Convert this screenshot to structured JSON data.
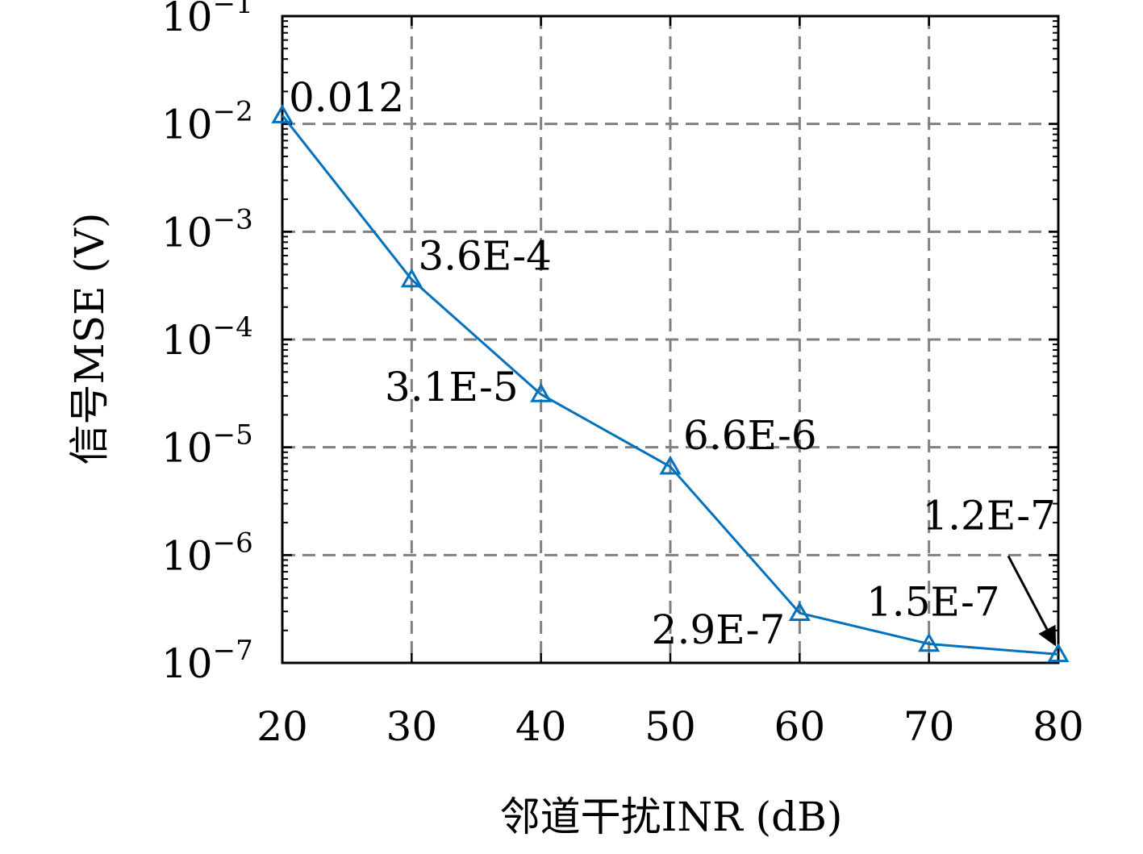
{
  "chart_data": {
    "type": "line",
    "title": "",
    "xlabel": "邻道干扰INR (dB)",
    "ylabel": "信号MSE (V)",
    "xlim": [
      20,
      80
    ],
    "ylim": [
      1e-07,
      0.1
    ],
    "yscale": "log",
    "grid": true,
    "marker": "triangle",
    "line_color": "#0072BD",
    "x_ticks": [
      20,
      30,
      40,
      50,
      60,
      70,
      80
    ],
    "x_tick_labels": [
      "20",
      "30",
      "40",
      "50",
      "60",
      "70",
      "80"
    ],
    "y_ticks": [
      1e-07,
      1e-06,
      1e-05,
      0.0001,
      0.001,
      0.01,
      0.1
    ],
    "y_tick_labels": [
      {
        "base": "10",
        "exp": "−7"
      },
      {
        "base": "10",
        "exp": "−6"
      },
      {
        "base": "10",
        "exp": "−5"
      },
      {
        "base": "10",
        "exp": "−4"
      },
      {
        "base": "10",
        "exp": "−3"
      },
      {
        "base": "10",
        "exp": "−2"
      },
      {
        "base": "10",
        "exp": "−1"
      }
    ],
    "series": [
      {
        "x": [
          20,
          30,
          40,
          50,
          60,
          70,
          80
        ],
        "y": [
          0.012,
          0.00036,
          3.1e-05,
          6.6e-06,
          2.9e-07,
          1.5e-07,
          1.2e-07
        ]
      }
    ],
    "annotations": [
      "0.012",
      "3.6E-4",
      "3.1E-5",
      "6.6E-6",
      "2.9E-7",
      "1.5E-7",
      "1.2E-7"
    ]
  }
}
